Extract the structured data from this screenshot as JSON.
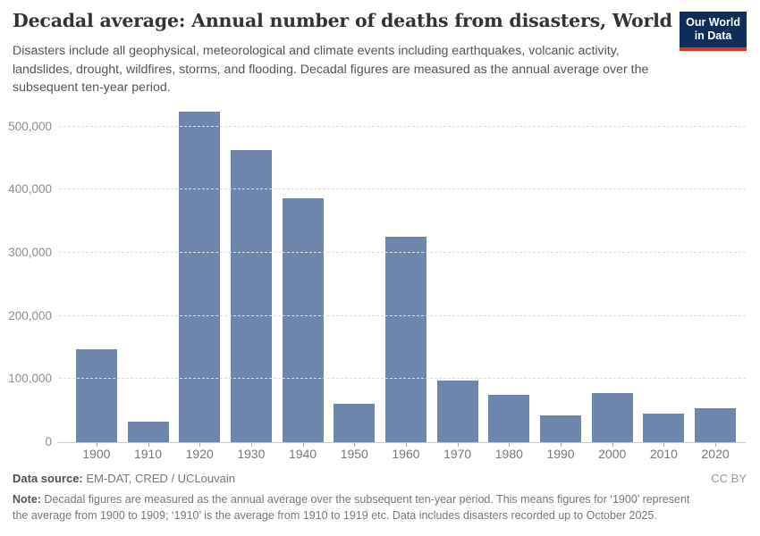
{
  "header": {
    "title": "Decadal average: Annual number of deaths from disasters, World",
    "subtitle": "Disasters include all geophysical, meteorological and climate events including earthquakes, volcanic activity, landslides, drought, wildfires, storms, and flooding. Decadal figures are measured as the annual average over the subsequent ten-year period.",
    "logo": {
      "line1": "Our World",
      "line2": "in Data",
      "bg_color": "#0d2e5a",
      "accent_color": "#d8352c"
    }
  },
  "chart_data": {
    "type": "bar",
    "title": "Decadal average: Annual number of deaths from disasters, World",
    "categories": [
      "1900",
      "1910",
      "1920",
      "1930",
      "1940",
      "1950",
      "1960",
      "1970",
      "1980",
      "1990",
      "2000",
      "2010",
      "2020"
    ],
    "values": [
      147000,
      32000,
      524000,
      462000,
      386000,
      61000,
      326000,
      98000,
      75000,
      43000,
      78000,
      45000,
      54000
    ],
    "xlabel": "",
    "ylabel": "",
    "ylim": [
      0,
      535000
    ],
    "yticks": [
      0,
      100000,
      200000,
      300000,
      400000,
      500000
    ],
    "ytick_labels": [
      "0",
      "100,000",
      "200,000",
      "300,000",
      "400,000",
      "500,000"
    ],
    "grid": "horizontal-dashed",
    "legend": "none",
    "bar_color": "#6e85ac"
  },
  "footer": {
    "datasource_label": "Data source:",
    "datasource_value": " EM-DAT, CRED / UCLouvain",
    "license": "CC BY",
    "note_label": "Note:",
    "note_text": " Decadal figures are measured as the annual average over the subsequent ten-year period. This means figures for ‘1900’ represent the average from 1900 to 1909; ‘1910’ is the average from 1910 to 1919 etc. Data includes disasters recorded up to October 2025."
  }
}
